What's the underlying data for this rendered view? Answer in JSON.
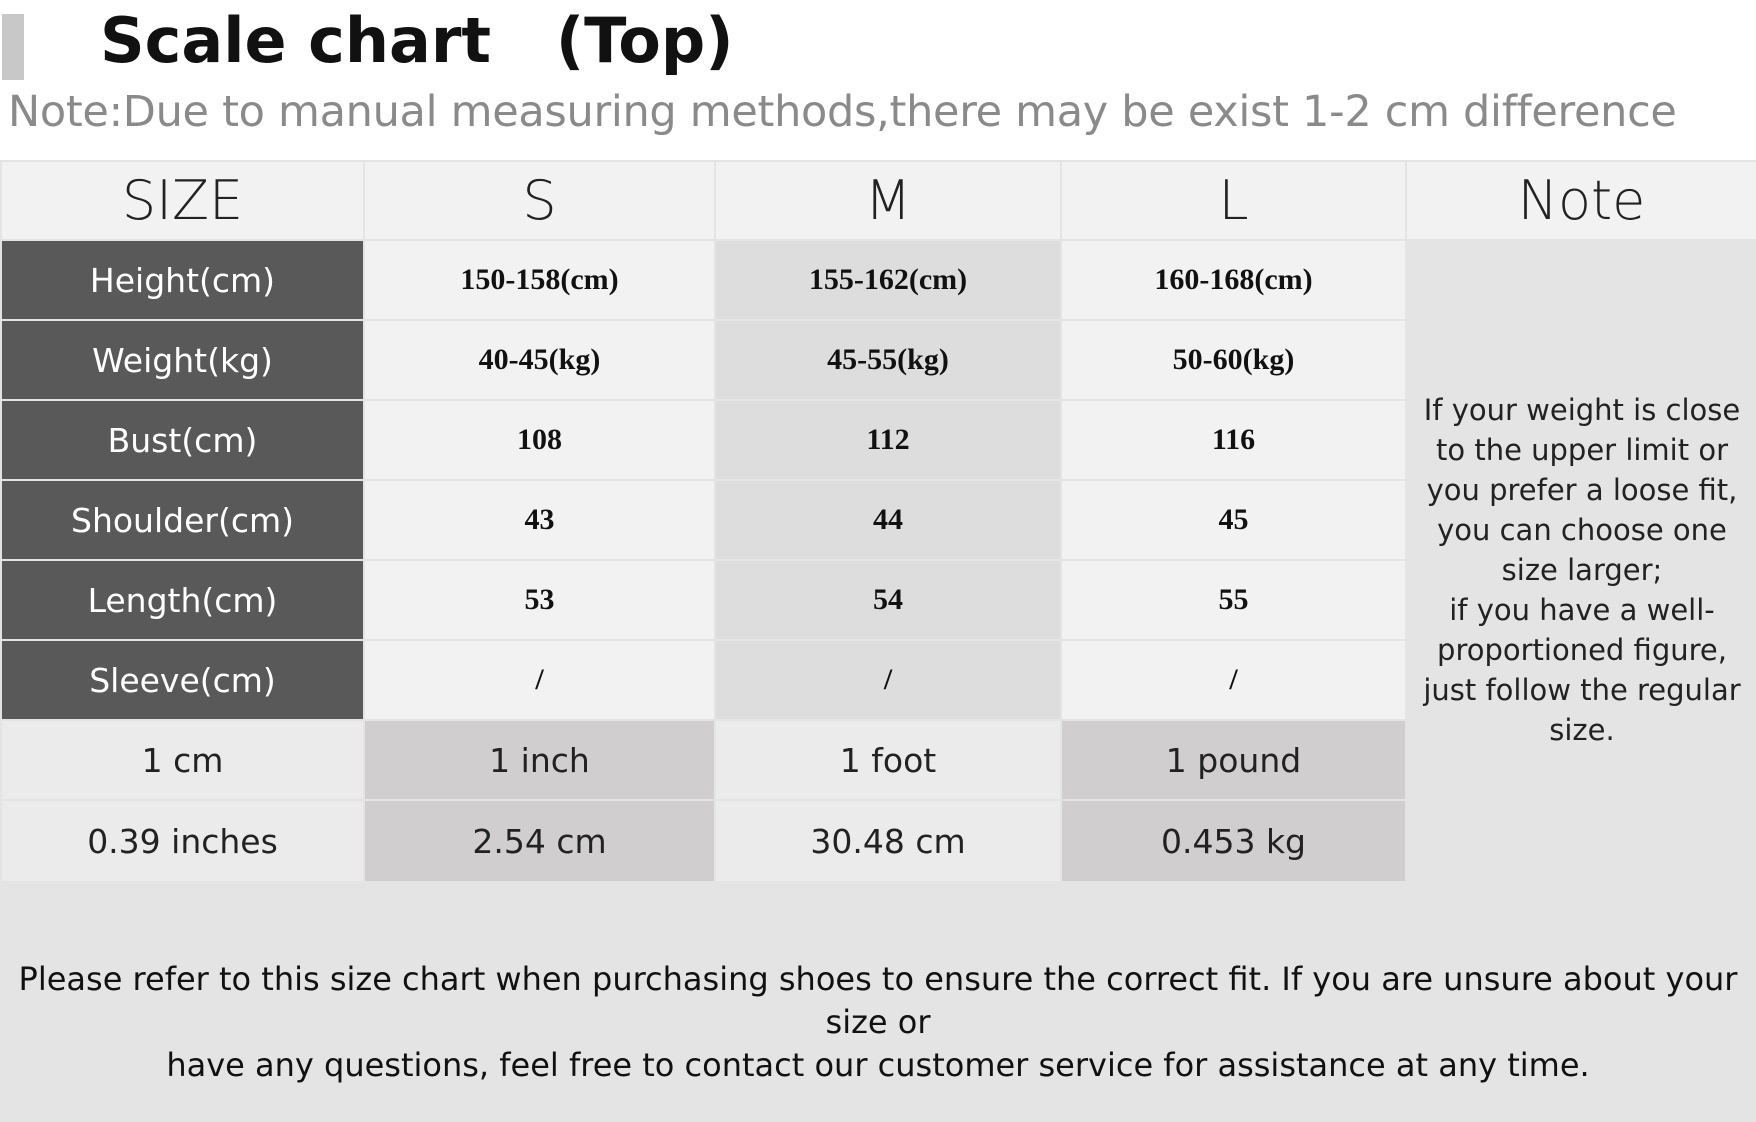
{
  "title": "Scale chart   (Top)",
  "note": "Note:Due to manual measuring methods,there may be exist 1-2 cm difference",
  "table": {
    "headers": [
      "SIZE",
      "S",
      "M",
      "L",
      "Note"
    ],
    "rows": [
      {
        "label": "Height(cm)",
        "values": [
          "150-158(cm)",
          "155-162(cm)",
          "160-168(cm)"
        ]
      },
      {
        "label": "Weight(kg)",
        "values": [
          "40-45(kg)",
          "45-55(kg)",
          "50-60(kg)"
        ]
      },
      {
        "label": "Bust(cm)",
        "values": [
          "108",
          "112",
          "116"
        ]
      },
      {
        "label": "Shoulder(cm)",
        "values": [
          "43",
          "44",
          "45"
        ]
      },
      {
        "label": "Length(cm)",
        "values": [
          "53",
          "54",
          "55"
        ]
      },
      {
        "label": "Sleeve(cm)",
        "values": [
          "/",
          "/",
          "/"
        ]
      }
    ],
    "conversion": [
      [
        "1 cm",
        "1 inch",
        "1 foot",
        "1 pound"
      ],
      [
        "0.39 inches",
        "2.54 cm",
        "30.48 cm",
        "0.453 kg"
      ]
    ],
    "side_note_lines": [
      "If your weight is close",
      "to the upper limit or",
      "you prefer a loose fit,",
      "you can choose one",
      "size larger;",
      "if you have a well-",
      "proportioned figure,",
      "just follow the regular",
      "size."
    ]
  },
  "footer": {
    "line1": "Please refer to this size chart when purchasing shoes to ensure the correct fit. If you are unsure about your size or",
    "line2": "have any questions, feel free to contact our customer service for assistance at any time."
  },
  "colors": {
    "label_bg": "#595959",
    "header_bg": "#f2f2f2",
    "panel_bg": "#e4e4e4",
    "note_text": "#8a8a8a"
  }
}
